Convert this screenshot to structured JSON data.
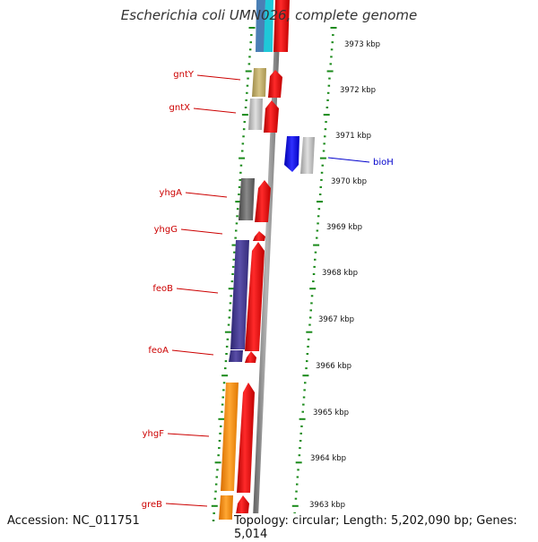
{
  "title": "Escherichia coli UMN026, complete genome",
  "footer": {
    "accession": "Accession: NC_011751",
    "topology": "Topology: circular; Length: 5,202,090 bp; Genes: 5,014"
  },
  "colors": {
    "backbone": "#8a8a8a",
    "cds": "#ff0000",
    "tick": "#1a8a1a",
    "label_forward": "#cc0000",
    "label_reverse": "#0000cc",
    "ruler_text": "#111111"
  },
  "ruler": [
    {
      "label": "3973 kbp"
    },
    {
      "label": "3972 kbp"
    },
    {
      "label": "3971 kbp"
    },
    {
      "label": "3970 kbp"
    },
    {
      "label": "3969 kbp"
    },
    {
      "label": "3968 kbp"
    },
    {
      "label": "3967 kbp"
    },
    {
      "label": "3966 kbp"
    },
    {
      "label": "3965 kbp"
    },
    {
      "label": "3964 kbp"
    },
    {
      "label": "3963 kbp"
    }
  ],
  "genes": [
    {
      "name": "gntY",
      "strand": "forward",
      "color": "#c9b46e"
    },
    {
      "name": "gntX",
      "strand": "forward",
      "color": "#c8c8c8"
    },
    {
      "name": "bioH",
      "strand": "reverse",
      "color": "#0000ff"
    },
    {
      "name": "yhgA",
      "strand": "forward",
      "color": "#6b6b6b"
    },
    {
      "name": "yhgG",
      "strand": "forward",
      "color": "#ff0000"
    },
    {
      "name": "feoB",
      "strand": "forward",
      "color": "#4a3f8f"
    },
    {
      "name": "feoA",
      "strand": "forward",
      "color": "#4a3f8f"
    },
    {
      "name": "yhgF",
      "strand": "forward",
      "color": "#ff8c00"
    },
    {
      "name": "greB",
      "strand": "forward",
      "color": "#ff8c00"
    }
  ]
}
